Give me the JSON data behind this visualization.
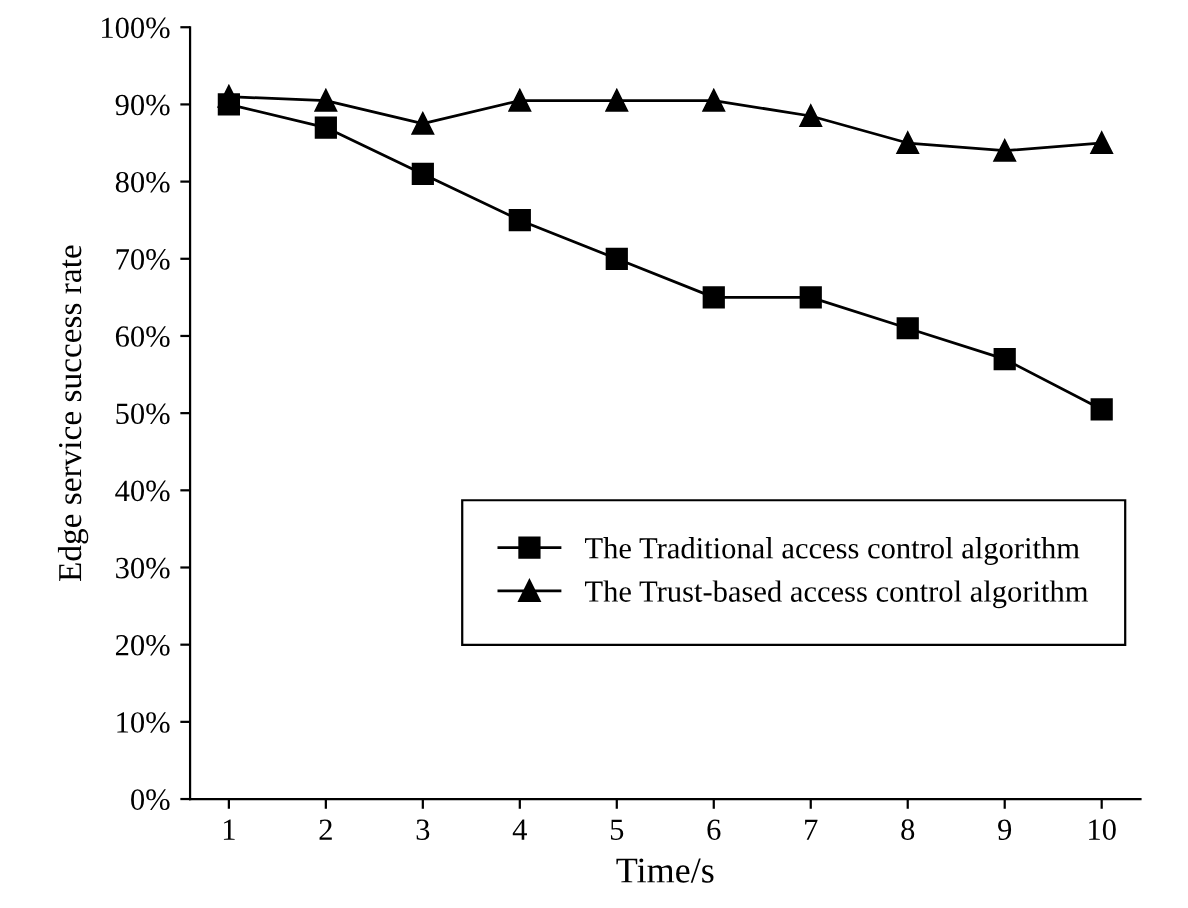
{
  "chart_data": {
    "type": "line",
    "xlabel": "Time/s",
    "ylabel": "Edge service success rate",
    "x": [
      1,
      2,
      3,
      4,
      5,
      6,
      7,
      8,
      9,
      10
    ],
    "series": [
      {
        "name": "The Traditional access control algorithm",
        "color": "#000000",
        "marker": "square",
        "values": [
          90,
          87,
          81,
          75,
          70,
          65,
          65,
          61,
          57,
          50.5
        ]
      },
      {
        "name": "The Trust-based access control algorithm",
        "color": "#000000",
        "marker": "triangle",
        "values": [
          91,
          90.5,
          87.5,
          90.5,
          90.5,
          90.5,
          88.5,
          85,
          84,
          85
        ]
      }
    ],
    "xlim": [
      0.6,
      10.4
    ],
    "xticks": [
      1,
      2,
      3,
      4,
      5,
      6,
      7,
      8,
      9,
      10
    ],
    "ylim": [
      0,
      100
    ],
    "yticks": [
      {
        "value": 0,
        "label": "0%"
      },
      {
        "value": 10,
        "label": "10%"
      },
      {
        "value": 20,
        "label": "20%"
      },
      {
        "value": 30,
        "label": "30%"
      },
      {
        "value": 40,
        "label": "40%"
      },
      {
        "value": 50,
        "label": "50%"
      },
      {
        "value": 60,
        "label": "60%"
      },
      {
        "value": 70,
        "label": "70%"
      },
      {
        "value": 80,
        "label": "80%"
      },
      {
        "value": 90,
        "label": "90%"
      },
      {
        "value": 100,
        "label": "100%"
      }
    ],
    "legend": "lower right",
    "grid": false,
    "line_style": "solid"
  }
}
